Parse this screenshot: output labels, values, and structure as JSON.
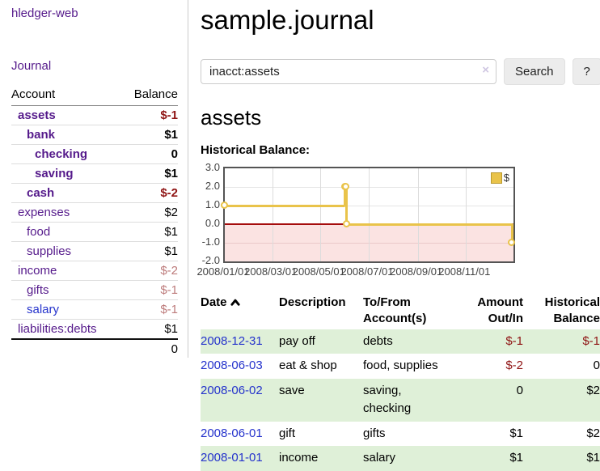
{
  "colors": {
    "purple": "#551a8b",
    "blue": "#2533cc",
    "negStrong": "#8f1414",
    "rose": "#bd7b7b",
    "gold": "#e9c34a",
    "pink": "#fbe3e2",
    "zero": "#a50d0d",
    "rowGreen": "#dff0d8"
  },
  "brand": "hledger-web",
  "nav": {
    "journal": "Journal"
  },
  "sidebar": {
    "headers": [
      "Account",
      "Balance"
    ],
    "accounts": [
      {
        "name": "assets",
        "indent": 1,
        "bold": true,
        "balance": "$-1",
        "style": "negStrong",
        "link": ""
      },
      {
        "name": "bank",
        "indent": 2,
        "bold": true,
        "balance": "$1",
        "style": "",
        "link": ""
      },
      {
        "name": "checking",
        "indent": 3,
        "bold": true,
        "balance": "0",
        "style": "",
        "link": ""
      },
      {
        "name": "saving",
        "indent": 3,
        "bold": true,
        "balance": "$1",
        "style": "",
        "link": ""
      },
      {
        "name": "cash",
        "indent": 2,
        "bold": true,
        "balance": "$-2",
        "style": "negStrong",
        "link": ""
      },
      {
        "name": "expenses",
        "indent": 1,
        "bold": false,
        "balance": "$2",
        "style": "",
        "link": ""
      },
      {
        "name": "food",
        "indent": 2,
        "bold": false,
        "balance": "$1",
        "style": "",
        "link": ""
      },
      {
        "name": "supplies",
        "indent": 2,
        "bold": false,
        "balance": "$1",
        "style": "",
        "link": ""
      },
      {
        "name": "income",
        "indent": 1,
        "bold": false,
        "balance": "$-2",
        "style": "rose",
        "link": ""
      },
      {
        "name": "gifts",
        "indent": 2,
        "bold": false,
        "balance": "$-1",
        "style": "rose",
        "link": ""
      },
      {
        "name": "salary",
        "indent": 2,
        "bold": false,
        "balance": "$-1",
        "style": "rose",
        "link": "blue"
      },
      {
        "name": "liabilities:debts",
        "indent": 1,
        "bold": false,
        "balance": "$1",
        "style": "",
        "link": ""
      }
    ],
    "total": "0"
  },
  "main": {
    "title": "sample.journal"
  },
  "search": {
    "value": "inacct:assets",
    "clear": "×",
    "button": "Search",
    "help": "?"
  },
  "account_page": {
    "heading": "assets",
    "section": "Historical Balance:"
  },
  "chart_data": {
    "type": "line",
    "step": true,
    "title": "Historical Balance",
    "series": [
      {
        "name": "$",
        "points": [
          [
            "2008/01/01",
            1
          ],
          [
            "2008/06/01",
            2
          ],
          [
            "2008/06/02",
            2
          ],
          [
            "2008/06/03",
            0
          ],
          [
            "2008/12/31",
            -1
          ]
        ]
      }
    ],
    "x_start": "2008/01/01",
    "x_span_days": 365,
    "x_ticks": [
      "2008/01/01",
      "2008/03/01",
      "2008/05/01",
      "2008/07/01",
      "2008/09/01",
      "2008/11/01"
    ],
    "y_ticks": [
      {
        "label": "3.0",
        "value": 3
      },
      {
        "label": "2.0",
        "value": 2
      },
      {
        "label": "1.0",
        "value": 1
      },
      {
        "label": "0.0",
        "value": 0
      },
      {
        "label": "-1.0",
        "value": -1
      },
      {
        "label": "-2.0",
        "value": -2
      }
    ],
    "ylim": [
      -2,
      3
    ],
    "legend": {
      "label": "$",
      "position": "top-right"
    },
    "grid": true,
    "negative_zone_fill": true
  },
  "register": {
    "headers": [
      "Date",
      "Description",
      "To/From Account(s)",
      "Amount Out/In",
      "Historical Balance"
    ],
    "rows": [
      {
        "date": "2008-12-31",
        "desc": "pay off",
        "accts": "debts",
        "amount": "$-1",
        "amount_neg": true,
        "balance": "$-1",
        "balance_neg": true,
        "shade": true
      },
      {
        "date": "2008-06-03",
        "desc": "eat & shop",
        "accts": "food, supplies",
        "amount": "$-2",
        "amount_neg": true,
        "balance": "0",
        "balance_neg": false,
        "shade": false
      },
      {
        "date": "2008-06-02",
        "desc": "save",
        "accts": "saving, checking",
        "amount": "0",
        "amount_neg": false,
        "balance": "$2",
        "balance_neg": false,
        "shade": true
      },
      {
        "date": "2008-06-01",
        "desc": "gift",
        "accts": "gifts",
        "amount": "$1",
        "amount_neg": false,
        "balance": "$2",
        "balance_neg": false,
        "shade": false
      },
      {
        "date": "2008-01-01",
        "desc": "income",
        "accts": "salary",
        "amount": "$1",
        "amount_neg": false,
        "balance": "$1",
        "balance_neg": false,
        "shade": true
      }
    ]
  }
}
